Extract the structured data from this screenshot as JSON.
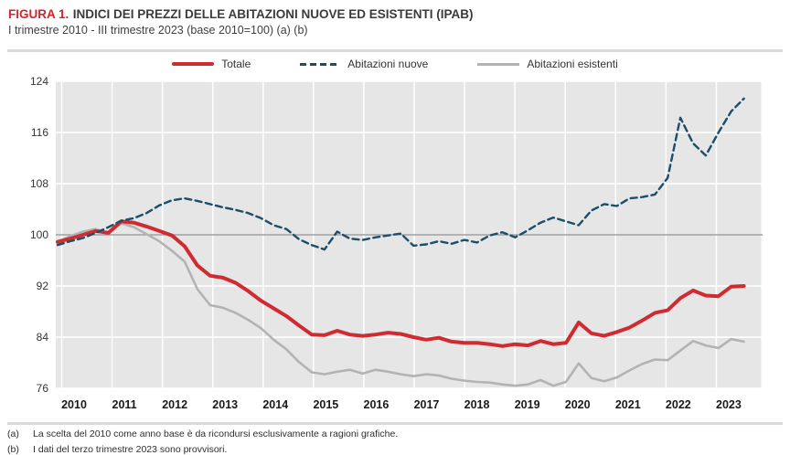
{
  "header": {
    "figure_label": "FIGURA 1.",
    "title": "INDICI DEI PREZZI DELLE ABITAZIONI NUOVE ED ESISTENTI (IPAB)",
    "subtitle": "I trimestre 2010 - III trimestre 2023 (base 2010=100) (a) (b)"
  },
  "footnotes": {
    "a_label": "(a)",
    "a_text": "La scelta del 2010 come anno base è da ricondursi esclusivamente a ragioni grafiche.",
    "b_label": "(b)",
    "b_text": "I dati del terzo trimestre 2023 sono provvisori."
  },
  "colors": {
    "title_accent": "#d5232a",
    "plot_background": "#e6e6e6",
    "gridline": "#ffffff",
    "reference_line_100": "#8c8c8c",
    "axis_text": "#333333",
    "totale": "#cf2b31",
    "nuove": "#1b4e6b",
    "esistenti": "#b3b3b3"
  },
  "chart_data": {
    "type": "line",
    "title": "Indici dei prezzi delle abitazioni nuove ed esistenti (IPAB)",
    "x_year_labels": [
      "2010",
      "2011",
      "2012",
      "2013",
      "2014",
      "2015",
      "2016",
      "2017",
      "2018",
      "2019",
      "2020",
      "2021",
      "2022",
      "2023"
    ],
    "quarters": [
      "2010-T1",
      "2010-T2",
      "2010-T3",
      "2010-T4",
      "2011-T1",
      "2011-T2",
      "2011-T3",
      "2011-T4",
      "2012-T1",
      "2012-T2",
      "2012-T3",
      "2012-T4",
      "2013-T1",
      "2013-T2",
      "2013-T3",
      "2013-T4",
      "2014-T1",
      "2014-T2",
      "2014-T3",
      "2014-T4",
      "2015-T1",
      "2015-T2",
      "2015-T3",
      "2015-T4",
      "2016-T1",
      "2016-T2",
      "2016-T3",
      "2016-T4",
      "2017-T1",
      "2017-T2",
      "2017-T3",
      "2017-T4",
      "2018-T1",
      "2018-T2",
      "2018-T3",
      "2018-T4",
      "2019-T1",
      "2019-T2",
      "2019-T3",
      "2019-T4",
      "2020-T1",
      "2020-T2",
      "2020-T3",
      "2020-T4",
      "2021-T1",
      "2021-T2",
      "2021-T3",
      "2021-T4",
      "2022-T1",
      "2022-T2",
      "2022-T3",
      "2022-T4",
      "2023-T1",
      "2023-T2",
      "2023-T3"
    ],
    "yticks": [
      76,
      84,
      92,
      100,
      108,
      116,
      124
    ],
    "ylim": [
      76,
      124
    ],
    "reference_line": 100,
    "grid": true,
    "legend_position": "top",
    "series": [
      {
        "name": "Totale",
        "style": "solid-thick",
        "color": "#cf2b31",
        "values": [
          98.9,
          99.4,
          100.0,
          100.6,
          100.3,
          102.1,
          101.9,
          101.3,
          100.6,
          99.9,
          98.2,
          95.2,
          93.6,
          93.3,
          92.5,
          91.2,
          89.7,
          88.5,
          87.3,
          85.8,
          84.4,
          84.3,
          85.0,
          84.4,
          84.2,
          84.4,
          84.7,
          84.5,
          84.0,
          83.6,
          83.9,
          83.3,
          83.1,
          83.1,
          82.9,
          82.6,
          82.9,
          82.7,
          83.4,
          82.9,
          83.1,
          86.3,
          84.6,
          84.2,
          84.8,
          85.5,
          86.6,
          87.8,
          88.2,
          90.1,
          91.3,
          90.5,
          90.4,
          91.9,
          92.0
        ]
      },
      {
        "name": "Abitazioni nuove",
        "style": "dashed",
        "color": "#1b4e6b",
        "values": [
          98.4,
          99.0,
          99.5,
          100.3,
          101.2,
          102.2,
          102.6,
          103.4,
          104.6,
          105.4,
          105.7,
          105.3,
          104.8,
          104.3,
          103.9,
          103.4,
          102.6,
          101.5,
          100.9,
          99.3,
          98.4,
          97.7,
          100.5,
          99.4,
          99.2,
          99.6,
          99.9,
          100.2,
          98.3,
          98.5,
          99.0,
          98.6,
          99.2,
          98.8,
          99.9,
          100.4,
          99.6,
          100.7,
          101.9,
          102.7,
          102.1,
          101.5,
          103.8,
          104.8,
          104.5,
          105.7,
          105.9,
          106.3,
          108.9,
          118.3,
          114.3,
          112.4,
          116.0,
          119.3,
          121.3
        ]
      },
      {
        "name": "Abitazioni esistenti",
        "style": "solid",
        "color": "#b3b3b3",
        "values": [
          98.9,
          99.8,
          100.5,
          100.9,
          100.2,
          101.8,
          101.2,
          100.1,
          99.0,
          97.5,
          95.8,
          91.5,
          89.0,
          88.6,
          87.8,
          86.7,
          85.4,
          83.6,
          82.1,
          80.1,
          78.5,
          78.2,
          78.6,
          78.9,
          78.3,
          78.9,
          78.6,
          78.2,
          77.9,
          78.2,
          78.0,
          77.5,
          77.2,
          77.0,
          76.9,
          76.6,
          76.4,
          76.6,
          77.3,
          76.4,
          77.0,
          79.9,
          77.6,
          77.1,
          77.7,
          78.8,
          79.8,
          80.5,
          80.4,
          81.9,
          83.4,
          82.7,
          82.3,
          83.7,
          83.3
        ]
      }
    ]
  }
}
